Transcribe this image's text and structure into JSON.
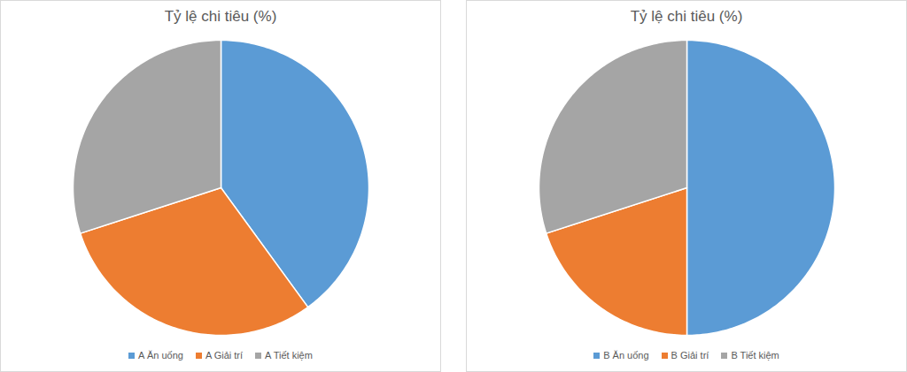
{
  "chart_data": [
    {
      "type": "pie",
      "title": "Tỷ lệ chi tiêu (%)",
      "categories": [
        "A Ăn uống",
        "A Giải trí",
        "A Tiết kiệm"
      ],
      "values": [
        40,
        30,
        30
      ],
      "colors": [
        "#5b9bd5",
        "#ed7d31",
        "#a5a5a5"
      ],
      "legend": "bottom",
      "data_labels": false
    },
    {
      "type": "pie",
      "title": "Tỷ lệ chi tiêu (%)",
      "categories": [
        "B Ăn uống",
        "B Giải trí",
        "B Tiết kiệm"
      ],
      "values": [
        50,
        20,
        30
      ],
      "colors": [
        "#5b9bd5",
        "#ed7d31",
        "#a5a5a5"
      ],
      "legend": "bottom",
      "data_labels": false
    }
  ]
}
